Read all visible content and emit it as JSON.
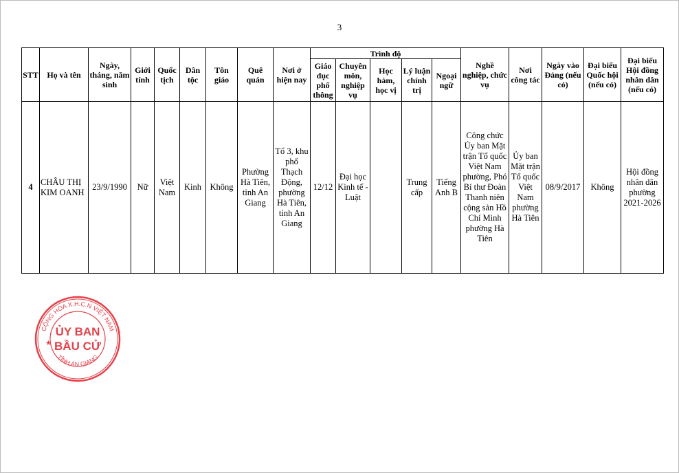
{
  "page_number": "3",
  "stamp": {
    "outer_text": "CỘNG HÒA X.H.C.N VIỆT NAM",
    "inner_line1": "ỦY BAN",
    "inner_line2": "BẦU CỬ",
    "bottom_text": "TỈNH AN GIANG",
    "color": "#e0202a"
  },
  "table": {
    "headers": {
      "stt": "STT",
      "name": "Họ và tên",
      "dob": "Ngày, tháng, năm sinh",
      "gender": "Giới tính",
      "nationality": "Quốc tịch",
      "ethnicity": "Dân tộc",
      "religion": "Tôn giáo",
      "hometown": "Quê quán",
      "residence": "Nơi ở hiện nay",
      "education_group": "Trình độ",
      "general_edu": "Giáo dục phổ thông",
      "professional": "Chuyên môn, nghiệp vụ",
      "academic": "Học hàm, học vị",
      "political": "Lý luận chính trị",
      "language": "Ngoại ngữ",
      "occupation": "Nghề nghiệp, chức vụ",
      "workplace": "Nơi công tác",
      "party_date": "Ngày vào Đảng (nếu có)",
      "na_delegate": "Đại biểu Quốc hội (nếu có)",
      "council_delegate": "Đại biểu Hội đồng nhân dân (nếu có)"
    },
    "rows": [
      {
        "stt": "4",
        "name": "CHÂU THỊ KIM OANH",
        "dob": "23/9/1990",
        "gender": "Nữ",
        "nationality": "Việt Nam",
        "ethnicity": "Kinh",
        "religion": "Không",
        "hometown": "Phường Hà Tiên, tỉnh An Giang",
        "residence": "Tổ 3, khu phố Thạch Động, phường Hà Tiên, tỉnh An Giang",
        "general_edu": "12/12",
        "professional": "Đại học Kinh tế - Luật",
        "academic": "",
        "political": "Trung cấp",
        "language": "Tiếng Anh B",
        "occupation": "Công chức Ủy ban Mặt trận Tổ quốc Việt Nam phường, Phó Bí thư Đoàn Thanh niên cộng sản Hồ Chí Minh phường Hà Tiên",
        "workplace": "Ủy ban Mặt trận Tổ quốc Việt Nam phường Hà Tiên",
        "party_date": "08/9/2017",
        "na_delegate": "Không",
        "council_delegate": "Hội đồng nhân dân phường 2021-2026"
      }
    ]
  }
}
